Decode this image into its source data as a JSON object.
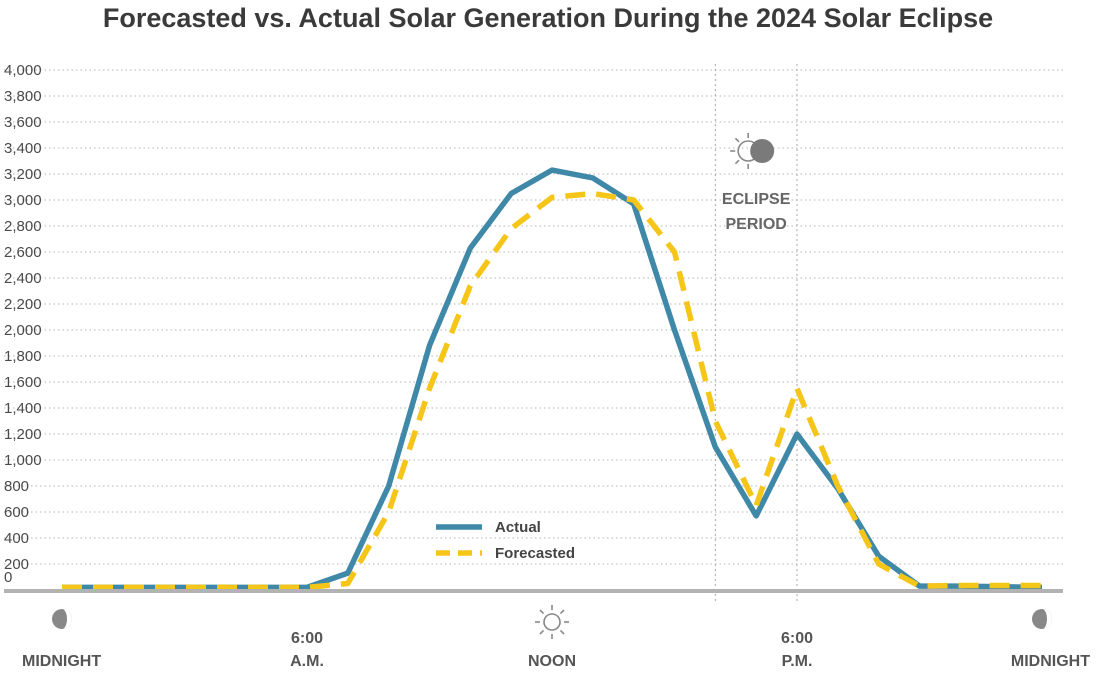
{
  "chart_data": {
    "type": "line",
    "title": "Forecasted vs. Actual Solar Generation During the 2024 Solar Eclipse",
    "xlabel": "",
    "ylabel": "",
    "ylim": [
      0,
      4000
    ],
    "yticks": [
      0,
      200,
      400,
      600,
      800,
      1000,
      1200,
      1400,
      1600,
      1800,
      2000,
      2200,
      2400,
      2600,
      2800,
      3000,
      3200,
      3400,
      3600,
      3800,
      4000
    ],
    "ytick_labels": [
      "0",
      "200",
      "400",
      "600",
      "800",
      "1,000",
      "1,200",
      "1,400",
      "1,600",
      "1,800",
      "2,000",
      "2,200",
      "2,400",
      "2,600",
      "2,800",
      "3,000",
      "3,200",
      "3,400",
      "3,600",
      "3,800",
      "4,000"
    ],
    "xlim": [
      0,
      24
    ],
    "x_markers": [
      {
        "x": 0,
        "lines": [
          "",
          "MIDNIGHT"
        ],
        "icon": "moon-icon"
      },
      {
        "x": 6,
        "lines": [
          "6:00",
          "A.M."
        ],
        "icon": ""
      },
      {
        "x": 12,
        "lines": [
          "",
          "NOON"
        ],
        "icon": "sun-icon"
      },
      {
        "x": 18,
        "lines": [
          "6:00",
          "P.M."
        ],
        "icon": ""
      },
      {
        "x": 24,
        "lines": [
          "",
          "MIDNIGHT"
        ],
        "icon": "moon-icon"
      }
    ],
    "eclipse": {
      "start": 16.0,
      "end": 18.0,
      "label_lines": [
        "ECLIPSE",
        "PERIOD"
      ],
      "icon": "eclipse-icon"
    },
    "grid": true,
    "legend_position": "center-left",
    "series": [
      {
        "name": "Actual",
        "color": "#3f88a8",
        "style": "solid",
        "x": [
          0,
          1,
          2,
          3,
          4,
          5,
          6,
          7,
          8,
          9,
          10,
          11,
          12,
          13,
          14,
          15,
          16,
          17,
          18,
          19,
          20,
          21,
          22,
          23,
          24
        ],
        "y": [
          20,
          20,
          20,
          20,
          20,
          20,
          20,
          130,
          800,
          1880,
          2630,
          3050,
          3230,
          3170,
          2970,
          2000,
          1100,
          570,
          1200,
          780,
          260,
          30,
          30,
          25,
          20
        ]
      },
      {
        "name": "Forecasted",
        "color": "#f5c518",
        "style": "dashed",
        "x": [
          0,
          1,
          2,
          3,
          4,
          5,
          6,
          7,
          8,
          9,
          10,
          11,
          12,
          13,
          14,
          15,
          16,
          17,
          18,
          19,
          20,
          21,
          22,
          23,
          24
        ],
        "y": [
          20,
          20,
          20,
          20,
          20,
          20,
          20,
          50,
          600,
          1550,
          2340,
          2780,
          3020,
          3050,
          3000,
          2600,
          1300,
          650,
          1550,
          800,
          200,
          30,
          35,
          35,
          35
        ]
      }
    ]
  }
}
